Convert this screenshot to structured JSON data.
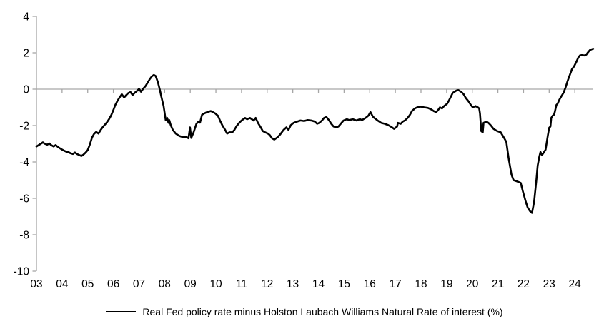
{
  "page": {
    "background": "#ffffff"
  },
  "chart_data": {
    "type": "line",
    "title": "",
    "legend_label": "Real Fed policy rate minus Holston Laubach Williams Natural Rate of interest (%)",
    "axis_color": "#a6a6a6",
    "line_color": "#000000",
    "grid": false,
    "legend_position": "bottom",
    "xlim": [
      2003,
      2024.72
    ],
    "ylim": [
      -10,
      4
    ],
    "y_ticks": [
      4,
      2,
      0,
      -2,
      -4,
      -6,
      -8,
      -10
    ],
    "x_ticks": [
      {
        "value": 2003,
        "label": "03"
      },
      {
        "value": 2004,
        "label": "04"
      },
      {
        "value": 2005,
        "label": "05"
      },
      {
        "value": 2006,
        "label": "06"
      },
      {
        "value": 2007,
        "label": "07"
      },
      {
        "value": 2008,
        "label": "08"
      },
      {
        "value": 2009,
        "label": "09"
      },
      {
        "value": 2010,
        "label": "10"
      },
      {
        "value": 2011,
        "label": "11"
      },
      {
        "value": 2012,
        "label": "12"
      },
      {
        "value": 2013,
        "label": "13"
      },
      {
        "value": 2014,
        "label": "14"
      },
      {
        "value": 2015,
        "label": "15"
      },
      {
        "value": 2016,
        "label": "16"
      },
      {
        "value": 2017,
        "label": "17"
      },
      {
        "value": 2018,
        "label": "18"
      },
      {
        "value": 2019,
        "label": "19"
      },
      {
        "value": 2020,
        "label": "20"
      },
      {
        "value": 2021,
        "label": "21"
      },
      {
        "value": 2022,
        "label": "22"
      },
      {
        "value": 2023,
        "label": "23"
      },
      {
        "value": 2024,
        "label": "24"
      }
    ],
    "zero_line": true,
    "series": [
      {
        "name": "Real Fed policy rate minus Holston Laubach Williams Natural Rate of interest (%)",
        "color": "#000000",
        "points": [
          [
            2003.0,
            -3.15
          ],
          [
            2003.08,
            -3.08
          ],
          [
            2003.17,
            -3.0
          ],
          [
            2003.25,
            -2.92
          ],
          [
            2003.33,
            -3.0
          ],
          [
            2003.42,
            -3.05
          ],
          [
            2003.5,
            -2.98
          ],
          [
            2003.58,
            -3.08
          ],
          [
            2003.67,
            -3.15
          ],
          [
            2003.75,
            -3.07
          ],
          [
            2003.83,
            -3.17
          ],
          [
            2003.92,
            -3.25
          ],
          [
            2004.0,
            -3.32
          ],
          [
            2004.08,
            -3.38
          ],
          [
            2004.17,
            -3.44
          ],
          [
            2004.25,
            -3.46
          ],
          [
            2004.33,
            -3.52
          ],
          [
            2004.42,
            -3.56
          ],
          [
            2004.5,
            -3.48
          ],
          [
            2004.58,
            -3.56
          ],
          [
            2004.67,
            -3.62
          ],
          [
            2004.75,
            -3.67
          ],
          [
            2004.83,
            -3.6
          ],
          [
            2004.92,
            -3.48
          ],
          [
            2005.0,
            -3.35
          ],
          [
            2005.08,
            -3.05
          ],
          [
            2005.17,
            -2.65
          ],
          [
            2005.25,
            -2.45
          ],
          [
            2005.33,
            -2.35
          ],
          [
            2005.42,
            -2.44
          ],
          [
            2005.5,
            -2.25
          ],
          [
            2005.58,
            -2.1
          ],
          [
            2005.67,
            -1.95
          ],
          [
            2005.75,
            -1.82
          ],
          [
            2005.83,
            -1.65
          ],
          [
            2005.92,
            -1.42
          ],
          [
            2006.0,
            -1.15
          ],
          [
            2006.08,
            -0.85
          ],
          [
            2006.17,
            -0.62
          ],
          [
            2006.25,
            -0.44
          ],
          [
            2006.33,
            -0.28
          ],
          [
            2006.42,
            -0.46
          ],
          [
            2006.5,
            -0.33
          ],
          [
            2006.58,
            -0.22
          ],
          [
            2006.67,
            -0.16
          ],
          [
            2006.75,
            -0.32
          ],
          [
            2006.83,
            -0.2
          ],
          [
            2006.92,
            -0.1
          ],
          [
            2007.0,
            0.02
          ],
          [
            2007.08,
            -0.14
          ],
          [
            2007.17,
            0.04
          ],
          [
            2007.25,
            0.16
          ],
          [
            2007.33,
            0.34
          ],
          [
            2007.42,
            0.55
          ],
          [
            2007.5,
            0.7
          ],
          [
            2007.58,
            0.78
          ],
          [
            2007.65,
            0.72
          ],
          [
            2007.74,
            0.37
          ],
          [
            2007.82,
            -0.08
          ],
          [
            2007.87,
            -0.41
          ],
          [
            2007.96,
            -0.93
          ],
          [
            2008.04,
            -1.7
          ],
          [
            2008.1,
            -1.58
          ],
          [
            2008.15,
            -1.85
          ],
          [
            2008.18,
            -1.7
          ],
          [
            2008.24,
            -1.98
          ],
          [
            2008.32,
            -2.24
          ],
          [
            2008.43,
            -2.44
          ],
          [
            2008.57,
            -2.57
          ],
          [
            2008.71,
            -2.63
          ],
          [
            2008.85,
            -2.63
          ],
          [
            2008.93,
            -2.7
          ],
          [
            2008.99,
            -2.1
          ],
          [
            2009.04,
            -2.68
          ],
          [
            2009.13,
            -2.37
          ],
          [
            2009.24,
            -1.9
          ],
          [
            2009.32,
            -1.78
          ],
          [
            2009.38,
            -1.84
          ],
          [
            2009.46,
            -1.4
          ],
          [
            2009.55,
            -1.33
          ],
          [
            2009.66,
            -1.26
          ],
          [
            2009.8,
            -1.2
          ],
          [
            2009.88,
            -1.26
          ],
          [
            2009.97,
            -1.33
          ],
          [
            2010.08,
            -1.46
          ],
          [
            2010.16,
            -1.72
          ],
          [
            2010.25,
            -1.98
          ],
          [
            2010.36,
            -2.24
          ],
          [
            2010.44,
            -2.44
          ],
          [
            2010.53,
            -2.37
          ],
          [
            2010.64,
            -2.37
          ],
          [
            2010.72,
            -2.24
          ],
          [
            2010.8,
            -2.04
          ],
          [
            2010.91,
            -1.85
          ],
          [
            2011.0,
            -1.72
          ],
          [
            2011.14,
            -1.58
          ],
          [
            2011.22,
            -1.65
          ],
          [
            2011.33,
            -1.58
          ],
          [
            2011.47,
            -1.72
          ],
          [
            2011.55,
            -1.58
          ],
          [
            2011.64,
            -1.85
          ],
          [
            2011.75,
            -2.1
          ],
          [
            2011.83,
            -2.3
          ],
          [
            2011.92,
            -2.37
          ],
          [
            2012.03,
            -2.44
          ],
          [
            2012.1,
            -2.52
          ],
          [
            2012.19,
            -2.7
          ],
          [
            2012.28,
            -2.77
          ],
          [
            2012.41,
            -2.64
          ],
          [
            2012.5,
            -2.5
          ],
          [
            2012.64,
            -2.24
          ],
          [
            2012.75,
            -2.1
          ],
          [
            2012.83,
            -2.24
          ],
          [
            2012.92,
            -1.98
          ],
          [
            2013.03,
            -1.85
          ],
          [
            2013.17,
            -1.78
          ],
          [
            2013.3,
            -1.72
          ],
          [
            2013.44,
            -1.75
          ],
          [
            2013.58,
            -1.7
          ],
          [
            2013.72,
            -1.72
          ],
          [
            2013.86,
            -1.78
          ],
          [
            2013.95,
            -1.9
          ],
          [
            2014.03,
            -1.85
          ],
          [
            2014.14,
            -1.72
          ],
          [
            2014.22,
            -1.58
          ],
          [
            2014.31,
            -1.53
          ],
          [
            2014.42,
            -1.72
          ],
          [
            2014.5,
            -1.9
          ],
          [
            2014.59,
            -2.05
          ],
          [
            2014.7,
            -2.1
          ],
          [
            2014.78,
            -2.05
          ],
          [
            2014.87,
            -1.9
          ],
          [
            2014.98,
            -1.72
          ],
          [
            2015.11,
            -1.65
          ],
          [
            2015.2,
            -1.7
          ],
          [
            2015.34,
            -1.65
          ],
          [
            2015.48,
            -1.72
          ],
          [
            2015.62,
            -1.65
          ],
          [
            2015.7,
            -1.7
          ],
          [
            2015.84,
            -1.58
          ],
          [
            2015.95,
            -1.45
          ],
          [
            2016.03,
            -1.26
          ],
          [
            2016.12,
            -1.5
          ],
          [
            2016.18,
            -1.58
          ],
          [
            2016.31,
            -1.72
          ],
          [
            2016.45,
            -1.85
          ],
          [
            2016.59,
            -1.9
          ],
          [
            2016.73,
            -1.98
          ],
          [
            2016.87,
            -2.1
          ],
          [
            2016.95,
            -2.18
          ],
          [
            2017.07,
            -2.05
          ],
          [
            2017.1,
            -1.85
          ],
          [
            2017.21,
            -1.9
          ],
          [
            2017.29,
            -1.78
          ],
          [
            2017.37,
            -1.72
          ],
          [
            2017.48,
            -1.58
          ],
          [
            2017.57,
            -1.4
          ],
          [
            2017.65,
            -1.2
          ],
          [
            2017.76,
            -1.06
          ],
          [
            2017.85,
            -1.0
          ],
          [
            2017.99,
            -0.96
          ],
          [
            2018.13,
            -1.0
          ],
          [
            2018.27,
            -1.03
          ],
          [
            2018.41,
            -1.12
          ],
          [
            2018.49,
            -1.2
          ],
          [
            2018.6,
            -1.26
          ],
          [
            2018.68,
            -1.12
          ],
          [
            2018.74,
            -1.0
          ],
          [
            2018.82,
            -1.06
          ],
          [
            2018.9,
            -0.93
          ],
          [
            2019.02,
            -0.8
          ],
          [
            2019.1,
            -0.6
          ],
          [
            2019.24,
            -0.2
          ],
          [
            2019.38,
            -0.08
          ],
          [
            2019.46,
            -0.05
          ],
          [
            2019.57,
            -0.15
          ],
          [
            2019.66,
            -0.27
          ],
          [
            2019.74,
            -0.47
          ],
          [
            2019.85,
            -0.66
          ],
          [
            2019.94,
            -0.86
          ],
          [
            2020.02,
            -1.0
          ],
          [
            2020.13,
            -0.93
          ],
          [
            2020.22,
            -1.0
          ],
          [
            2020.27,
            -1.06
          ],
          [
            2020.3,
            -1.33
          ],
          [
            2020.35,
            -2.3
          ],
          [
            2020.41,
            -2.37
          ],
          [
            2020.44,
            -1.85
          ],
          [
            2020.55,
            -1.78
          ],
          [
            2020.63,
            -1.85
          ],
          [
            2020.72,
            -1.98
          ],
          [
            2020.83,
            -2.18
          ],
          [
            2020.97,
            -2.3
          ],
          [
            2021.11,
            -2.37
          ],
          [
            2021.25,
            -2.7
          ],
          [
            2021.33,
            -2.9
          ],
          [
            2021.42,
            -3.8
          ],
          [
            2021.53,
            -4.7
          ],
          [
            2021.61,
            -5.0
          ],
          [
            2021.75,
            -5.07
          ],
          [
            2021.89,
            -5.15
          ],
          [
            2021.97,
            -5.6
          ],
          [
            2022.08,
            -6.15
          ],
          [
            2022.16,
            -6.5
          ],
          [
            2022.25,
            -6.7
          ],
          [
            2022.33,
            -6.8
          ],
          [
            2022.41,
            -6.2
          ],
          [
            2022.5,
            -5.0
          ],
          [
            2022.55,
            -4.2
          ],
          [
            2022.61,
            -3.75
          ],
          [
            2022.66,
            -3.45
          ],
          [
            2022.72,
            -3.62
          ],
          [
            2022.78,
            -3.5
          ],
          [
            2022.86,
            -3.32
          ],
          [
            2022.94,
            -2.6
          ],
          [
            2023.0,
            -2.12
          ],
          [
            2023.05,
            -2.05
          ],
          [
            2023.08,
            -1.58
          ],
          [
            2023.14,
            -1.45
          ],
          [
            2023.19,
            -1.4
          ],
          [
            2023.22,
            -1.25
          ],
          [
            2023.28,
            -0.87
          ],
          [
            2023.33,
            -0.8
          ],
          [
            2023.39,
            -0.6
          ],
          [
            2023.47,
            -0.4
          ],
          [
            2023.56,
            -0.2
          ],
          [
            2023.64,
            0.1
          ],
          [
            2023.72,
            0.45
          ],
          [
            2023.81,
            0.8
          ],
          [
            2023.89,
            1.1
          ],
          [
            2023.97,
            1.25
          ],
          [
            2024.06,
            1.5
          ],
          [
            2024.14,
            1.75
          ],
          [
            2024.2,
            1.85
          ],
          [
            2024.28,
            1.88
          ],
          [
            2024.37,
            1.85
          ],
          [
            2024.45,
            1.9
          ],
          [
            2024.5,
            2.0
          ],
          [
            2024.59,
            2.15
          ],
          [
            2024.67,
            2.2
          ],
          [
            2024.72,
            2.22
          ]
        ]
      }
    ]
  }
}
